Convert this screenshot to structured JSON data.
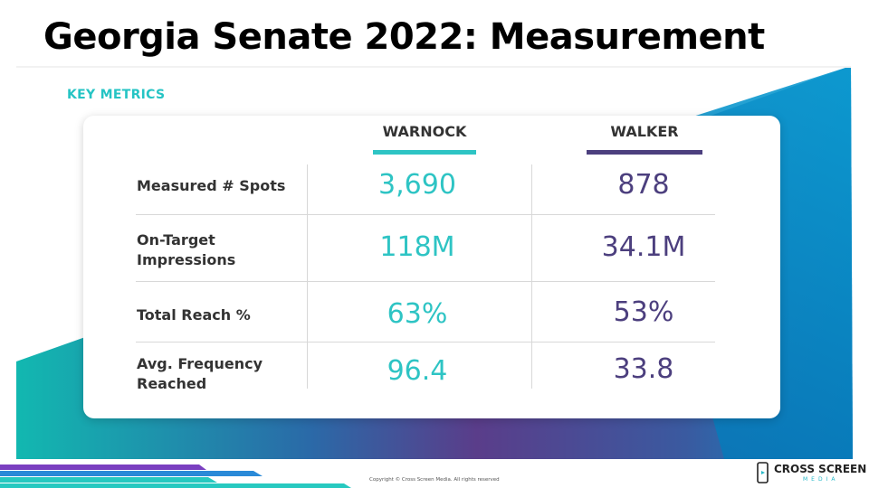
{
  "title": "Georgia Senate 2022: Measurement",
  "section_label": "KEY METRICS",
  "columns": [
    {
      "label": "WARNOCK",
      "color": "#2ec4c4"
    },
    {
      "label": "WALKER",
      "color": "#4c3f7e"
    }
  ],
  "rows": [
    {
      "label": "Measured # Spots",
      "warnock": "3,690",
      "walker": "878"
    },
    {
      "label": "On-Target\nImpressions",
      "warnock": "118M",
      "walker": "34.1M"
    },
    {
      "label": "Total Reach %",
      "warnock": "63%",
      "walker": "53%"
    },
    {
      "label": "Avg. Frequency\nReached",
      "warnock": "96.4",
      "walker": "33.8"
    }
  ],
  "footer": {
    "copyright": "Copyright © Cross Screen Media. All rights reserved",
    "logo_main": "CROSS SCREEN",
    "logo_sub": "MEDIA"
  },
  "colors": {
    "teal": "#2ec4c4",
    "purple": "#4c3f7e",
    "blue": "#1a7fc0"
  }
}
